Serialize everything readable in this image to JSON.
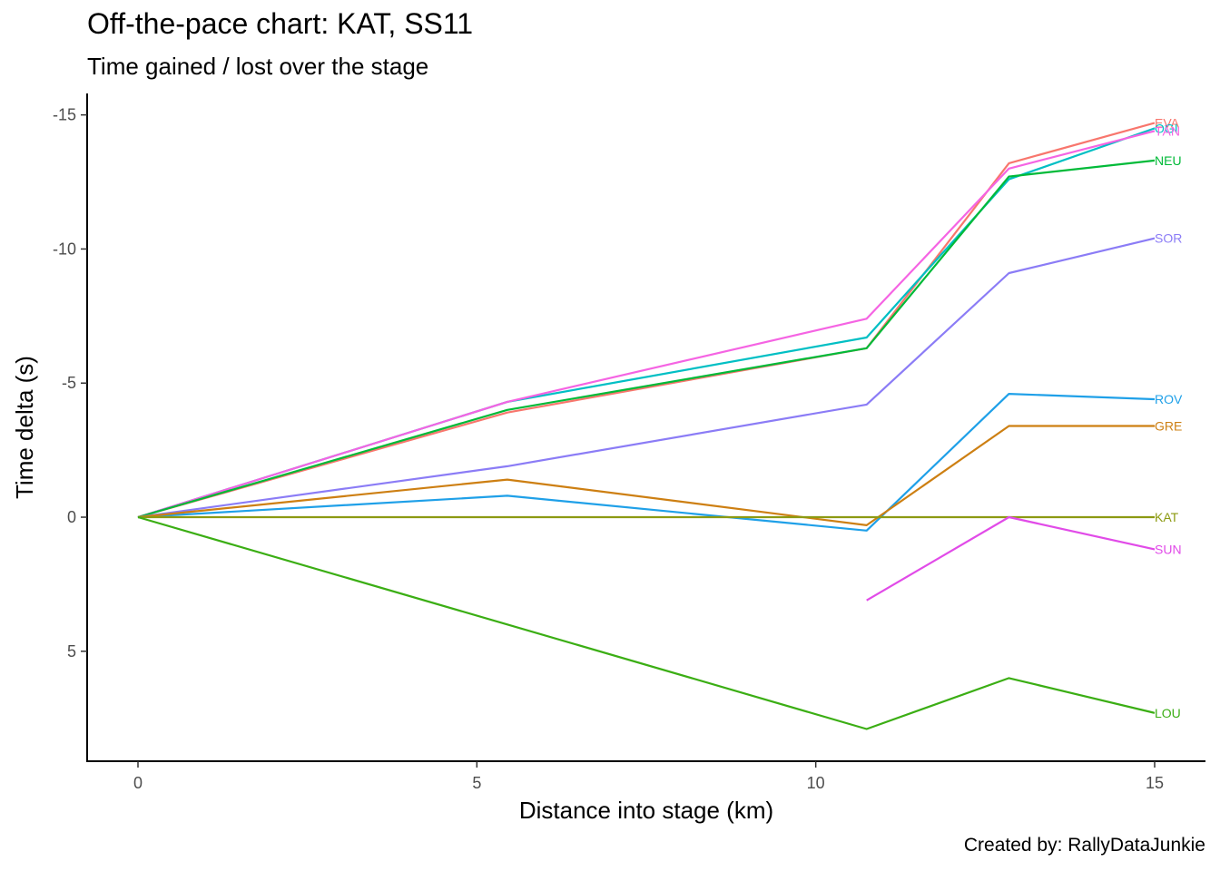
{
  "title": "Off-the-pace chart: KAT, SS11",
  "subtitle": "Time gained / lost over the stage",
  "caption": "Created by: RallyDataJunkie",
  "chart_data": {
    "type": "line",
    "xlabel": "Distance into stage (km)",
    "ylabel": "Time delta (s)",
    "xlim": [
      -0.75,
      15.75
    ],
    "ylim": [
      -15.8,
      9.1
    ],
    "y_reversed": true,
    "xticks": [
      0,
      5,
      10,
      15
    ],
    "yticks": [
      -15,
      -10,
      -5,
      0,
      5
    ],
    "ytick_labels": [
      "-15",
      "-10",
      "-5",
      "0",
      "5"
    ],
    "grid": false,
    "legend": "direct labels at line ends",
    "series": [
      {
        "name": "EVA",
        "color": "#F8766D",
        "points": [
          [
            0,
            0
          ],
          [
            5.45,
            -3.9
          ],
          [
            10.75,
            -6.3
          ],
          [
            12.85,
            -13.2
          ],
          [
            15,
            -14.7
          ]
        ]
      },
      {
        "name": "OGI",
        "color": "#00BFC4",
        "points": [
          [
            0,
            0
          ],
          [
            5.45,
            -4.3
          ],
          [
            10.75,
            -6.7
          ],
          [
            12.85,
            -12.6
          ],
          [
            15,
            -14.5
          ]
        ]
      },
      {
        "name": "TÄN",
        "color": "#F564E3",
        "points": [
          [
            0,
            0
          ],
          [
            5.45,
            -4.3
          ],
          [
            10.75,
            -7.4
          ],
          [
            12.85,
            -13.0
          ],
          [
            15,
            -14.4
          ]
        ]
      },
      {
        "name": "NEU",
        "color": "#00BA38",
        "points": [
          [
            0,
            0
          ],
          [
            5.45,
            -4.0
          ],
          [
            10.75,
            -6.3
          ],
          [
            12.85,
            -12.7
          ],
          [
            15,
            -13.3
          ]
        ]
      },
      {
        "name": "SOR",
        "color": "#8B7CF6",
        "points": [
          [
            0,
            0
          ],
          [
            5.45,
            -1.9
          ],
          [
            10.75,
            -4.2
          ],
          [
            12.85,
            -9.1
          ],
          [
            15,
            -10.4
          ]
        ]
      },
      {
        "name": "ROV",
        "color": "#1FA0E8",
        "points": [
          [
            0,
            0
          ],
          [
            5.45,
            -0.8
          ],
          [
            10.75,
            0.5
          ],
          [
            12.85,
            -4.6
          ],
          [
            15,
            -4.4
          ]
        ]
      },
      {
        "name": "GRE",
        "color": "#CD7F12",
        "points": [
          [
            0,
            0
          ],
          [
            5.45,
            -1.4
          ],
          [
            10.75,
            0.3
          ],
          [
            12.85,
            -3.4
          ],
          [
            15,
            -3.4
          ]
        ]
      },
      {
        "name": "KAT",
        "color": "#8C9A12",
        "points": [
          [
            0,
            0
          ],
          [
            5.45,
            0
          ],
          [
            10.75,
            0
          ],
          [
            12.85,
            0
          ],
          [
            15,
            0
          ]
        ]
      },
      {
        "name": "SUN",
        "color": "#E14BE8",
        "points": [
          [
            10.75,
            3.1
          ],
          [
            12.85,
            0
          ],
          [
            15,
            1.2
          ]
        ]
      },
      {
        "name": "LOU",
        "color": "#3BAE14",
        "points": [
          [
            0,
            0
          ],
          [
            5.45,
            4.0
          ],
          [
            10.75,
            7.9
          ],
          [
            12.85,
            6.0
          ],
          [
            15,
            7.3
          ]
        ]
      }
    ]
  }
}
